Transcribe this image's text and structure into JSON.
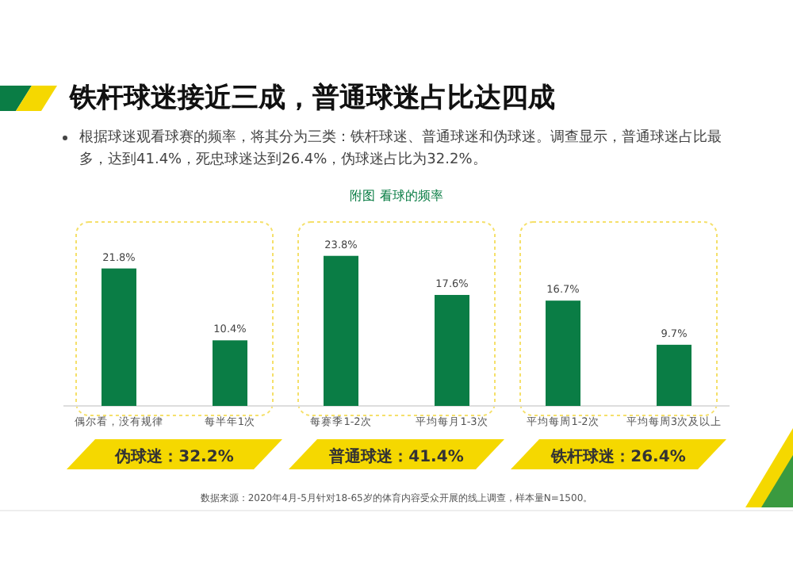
{
  "chart_data": {
    "type": "bar",
    "title": "铁杆球迷接近三成，普通球迷占比达四成",
    "subtitle": "根据球迷观看球赛的频率，将其分为三类：铁杆球迷、普通球迷和伪球迷。调查显示，普通球迷占比最多，达到41.4%，死忠球迷达到26.4%，伪球迷占比为32.2%。",
    "xlabel": "附图  看球的频率",
    "categories": [
      "偶尔看，没有规律",
      "每半年1次",
      "每赛季1-2次",
      "平均每月1-3次",
      "平均每周1-2次",
      "平均每周3次及以上"
    ],
    "values": [
      21.8,
      10.4,
      23.8,
      17.6,
      16.7,
      9.7
    ],
    "color": "#0a7d45",
    "value_labels": [
      "21.8%",
      "10.4%",
      "23.8%",
      "17.6%",
      "16.7%",
      "9.7%"
    ],
    "annotations": [
      "伪球迷：32.2%",
      "普通球迷：41.4%",
      "铁杆球迷：26.4%",
      "数据来源：2020年4月-5月针对18-65岁的体育内容受众开展的线上调查，样本量N=1500。"
    ]
  }
}
